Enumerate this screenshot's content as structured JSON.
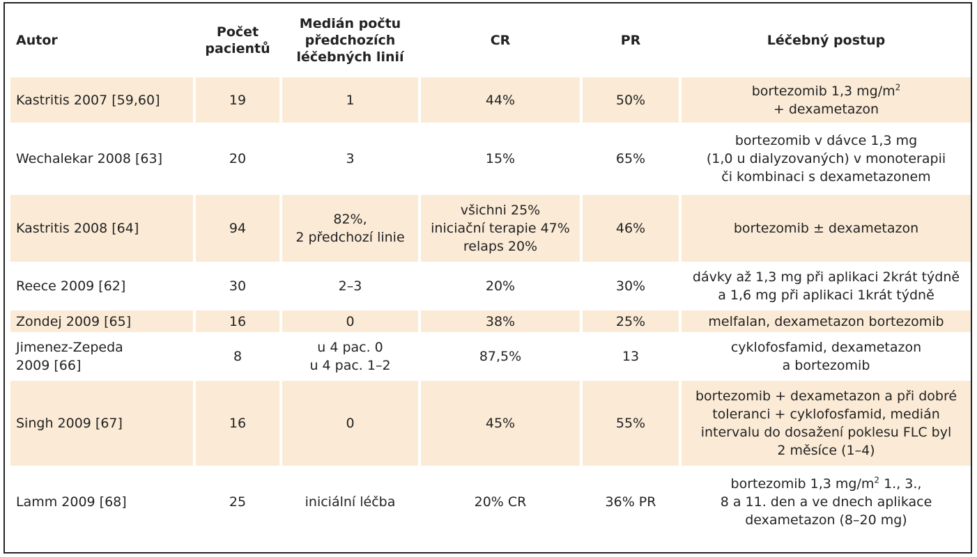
{
  "headers": {
    "author": "Autor",
    "patients": [
      "Počet",
      "pacientů"
    ],
    "median_lines": [
      "Medián počtu",
      "předchozích",
      "léčebných linií"
    ],
    "cr": "CR",
    "pr": "PR",
    "procedure": "Léčebný postup"
  },
  "rows": [
    {
      "author": [
        "Kastritis 2007 [59,60]"
      ],
      "patients": "19",
      "median": [
        "1"
      ],
      "cr": [
        "44%"
      ],
      "pr": "50%",
      "procedure_a": "bortezomib 1,3 mg/m",
      "procedure_sup": "2",
      "procedure_b": "+ dexametazon"
    },
    {
      "author": [
        "Wechalekar 2008 [63]"
      ],
      "patients": "20",
      "median": [
        "3"
      ],
      "cr": [
        "15%"
      ],
      "pr": "65%",
      "procedure": [
        "bortezomib v dávce 1,3 mg",
        "(1,0 u dialyzovaných) v monoterapii",
        "či kombinaci s dexametazonem"
      ]
    },
    {
      "author": [
        "Kastritis 2008 [64]"
      ],
      "patients": "94",
      "median": [
        "82%,",
        "2 předchozí linie"
      ],
      "cr": [
        "všichni 25%",
        "iniciační terapie 47%",
        "relaps 20%"
      ],
      "pr": "46%",
      "procedure": [
        "bortezomib ± dexametazon"
      ]
    },
    {
      "author": [
        "Reece 2009 [62]"
      ],
      "patients": "30",
      "median": [
        "2–3"
      ],
      "cr": [
        "20%"
      ],
      "pr": "30%",
      "procedure": [
        "dávky až 1,3 mg při aplikaci 2krát týdně",
        "a 1,6 mg při aplikaci 1krát týdně"
      ]
    },
    {
      "author": [
        "Zondej 2009 [65]"
      ],
      "patients": "16",
      "median": [
        "0"
      ],
      "cr": [
        "38%"
      ],
      "pr": "25%",
      "procedure": [
        "melfalan, dexametazon bortezomib"
      ]
    },
    {
      "author": [
        "Jimenez-Zepeda",
        "2009 [66]"
      ],
      "patients": "8",
      "median": [
        "u 4 pac. 0",
        "u 4 pac. 1–2"
      ],
      "cr": [
        "87,5%"
      ],
      "pr": "13",
      "procedure": [
        "cyklofosfamid, dexametazon",
        "a bortezomib"
      ]
    },
    {
      "author": [
        "Singh 2009 [67]"
      ],
      "patients": "16",
      "median": [
        "0"
      ],
      "cr": [
        "45%"
      ],
      "pr": "55%",
      "procedure": [
        "bortezomib + dexametazon a při dobré",
        "toleranci + cyklofosfamid, medián",
        "intervalu do dosažení poklesu FLC byl",
        "2 měsíce (1–4)"
      ]
    },
    {
      "author": [
        "Lamm 2009 [68]"
      ],
      "patients": "25",
      "median": [
        "iniciální léčba"
      ],
      "cr": [
        "20% CR"
      ],
      "pr": "36% PR",
      "procedure_a": "bortezomib 1,3 mg/m",
      "procedure_sup": "2",
      "procedure_a2": " 1., 3.,",
      "procedure_b": "8 a 11. den a ve dnech aplikace",
      "procedure_c": "dexametazon (8–20 mg)"
    }
  ],
  "colors": {
    "shade": "#fbebd6",
    "border": "#222222"
  }
}
